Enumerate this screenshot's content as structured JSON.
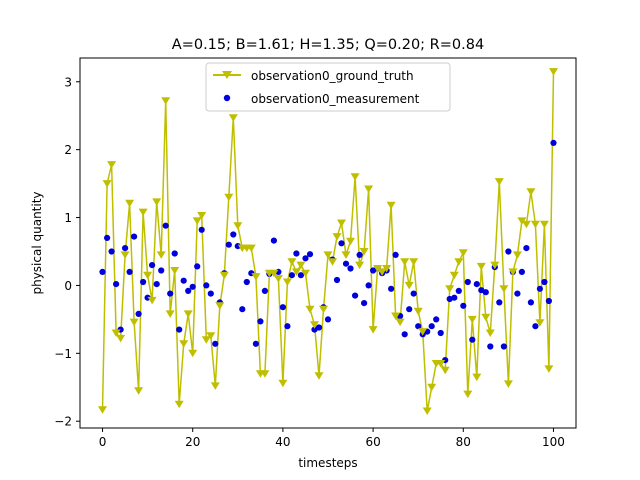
{
  "chart_data": {
    "type": "line",
    "title": "A=0.15; B=1.61; H=1.35; Q=0.20; R=0.84",
    "xlabel": "timesteps",
    "ylabel": "physical quantity",
    "xlim": [
      -5,
      105
    ],
    "ylim": [
      -2.1,
      3.35
    ],
    "xticks": [
      0,
      20,
      40,
      60,
      80,
      100
    ],
    "yticks": [
      -2,
      -1,
      0,
      1,
      2,
      3
    ],
    "grid": false,
    "legend_position": "top-center",
    "series": [
      {
        "name": "observation0_ground_truth",
        "style": "line-with-triangle-down-markers",
        "color": "#bfbf00",
        "x": [
          0,
          1,
          2,
          3,
          4,
          5,
          6,
          7,
          8,
          9,
          10,
          11,
          12,
          13,
          14,
          15,
          16,
          17,
          18,
          19,
          20,
          21,
          22,
          23,
          24,
          25,
          26,
          27,
          28,
          29,
          30,
          31,
          32,
          33,
          34,
          35,
          36,
          37,
          38,
          39,
          40,
          41,
          42,
          43,
          44,
          45,
          46,
          47,
          48,
          49,
          50,
          51,
          52,
          53,
          54,
          55,
          56,
          57,
          58,
          59,
          60,
          61,
          62,
          63,
          64,
          65,
          66,
          67,
          68,
          69,
          70,
          71,
          72,
          73,
          74,
          75,
          76,
          77,
          78,
          79,
          80,
          81,
          82,
          83,
          84,
          85,
          86,
          87,
          88,
          89,
          90,
          91,
          92,
          93,
          94,
          95,
          96,
          97,
          98,
          99,
          100
        ],
        "values": [
          -1.83,
          1.5,
          1.78,
          -0.7,
          -0.78,
          0.45,
          1.21,
          -0.54,
          -1.55,
          1.08,
          0.15,
          -0.22,
          1.23,
          0.45,
          2.72,
          -0.42,
          0.22,
          -1.75,
          -0.86,
          -0.42,
          -1.0,
          0.95,
          1.03,
          -0.8,
          -0.74,
          -1.48,
          -0.3,
          0.15,
          1.3,
          2.47,
          0.88,
          0.55,
          0.55,
          0.55,
          0.13,
          -1.3,
          -1.3,
          0.18,
          0.18,
          0.1,
          -1.44,
          0.05,
          0.35,
          0.2,
          0.3,
          0.18,
          -0.35,
          -0.58,
          -1.33,
          -0.35,
          0.45,
          0.35,
          0.72,
          0.92,
          0.45,
          0.65,
          1.6,
          0.3,
          0.5,
          1.42,
          -0.65,
          0.25,
          0.2,
          0.25,
          1.18,
          -0.45,
          -0.54,
          0.35,
          0.0,
          0.35,
          -0.38,
          -0.68,
          -1.85,
          -1.5,
          -1.15,
          -1.15,
          -1.25,
          -0.05,
          0.15,
          0.35,
          0.48,
          -1.6,
          -0.5,
          -1.35,
          0.28,
          -0.47,
          -0.7,
          0.3,
          1.53,
          -0.05,
          -1.45,
          0.2,
          0.45,
          0.95,
          0.9,
          1.38,
          0.9,
          -0.55,
          0.9,
          -1.23,
          3.15
        ]
      },
      {
        "name": "observation0_measurement",
        "style": "scatter",
        "color": "#0000dd",
        "x": [
          0,
          1,
          2,
          3,
          4,
          5,
          6,
          7,
          8,
          9,
          10,
          11,
          12,
          13,
          14,
          15,
          16,
          17,
          18,
          19,
          20,
          21,
          22,
          23,
          24,
          25,
          26,
          27,
          28,
          29,
          30,
          31,
          32,
          33,
          34,
          35,
          36,
          37,
          38,
          39,
          40,
          41,
          42,
          43,
          44,
          45,
          46,
          47,
          48,
          49,
          50,
          51,
          52,
          53,
          54,
          55,
          56,
          57,
          58,
          59,
          60,
          61,
          62,
          63,
          64,
          65,
          66,
          67,
          68,
          69,
          70,
          71,
          72,
          73,
          74,
          75,
          76,
          77,
          78,
          79,
          80,
          81,
          82,
          83,
          84,
          85,
          86,
          87,
          88,
          89,
          90,
          91,
          92,
          93,
          94,
          95,
          96,
          97,
          98,
          99,
          100
        ],
        "values": [
          0.2,
          0.7,
          0.5,
          0.02,
          -0.65,
          0.55,
          0.2,
          0.72,
          -0.42,
          0.05,
          -0.18,
          0.3,
          0.02,
          0.22,
          0.88,
          -0.12,
          0.47,
          -0.65,
          0.07,
          -0.08,
          -0.02,
          0.28,
          0.82,
          0.0,
          -0.12,
          -0.86,
          -0.25,
          0.18,
          0.6,
          0.75,
          0.58,
          -0.35,
          0.05,
          0.18,
          -0.86,
          -0.53,
          -0.08,
          0.17,
          0.66,
          0.2,
          -0.32,
          -0.6,
          0.15,
          0.47,
          0.15,
          0.4,
          0.46,
          -0.65,
          -0.62,
          -0.32,
          -0.5,
          0.38,
          0.08,
          0.62,
          0.32,
          0.25,
          -0.15,
          0.45,
          -0.26,
          0.0,
          0.22,
          0.25,
          0.18,
          0.22,
          -0.05,
          0.45,
          -0.45,
          -0.72,
          -0.35,
          -0.12,
          -0.6,
          -0.72,
          -0.68,
          -0.6,
          -0.5,
          -0.7,
          -1.1,
          -0.2,
          -0.18,
          -0.08,
          -0.3,
          0.05,
          -0.8,
          0.02,
          -0.07,
          -0.1,
          -0.9,
          0.27,
          -0.25,
          -0.9,
          0.5,
          0.2,
          -0.12,
          0.2,
          0.55,
          -0.25,
          -0.6,
          -0.05,
          0.05,
          -0.23,
          2.1
        ]
      }
    ]
  },
  "colors": {
    "line": "#bfbf00",
    "scatter": "#0000dd",
    "axes": "#000000",
    "background": "#ffffff"
  }
}
